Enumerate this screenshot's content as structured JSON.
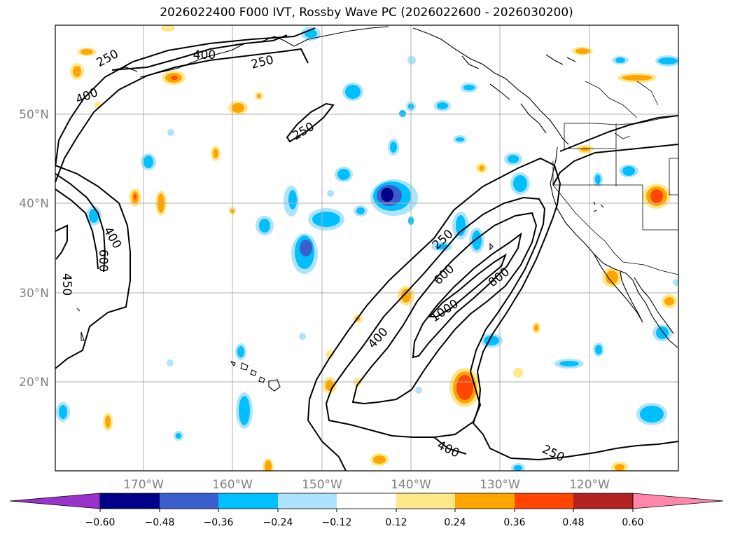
{
  "title": "2026022400 F000 IVT, Rossby Wave PC (2026022600 - 2026030200)",
  "map": {
    "lat_labels": [
      "50°N",
      "40°N",
      "30°N",
      "20°N"
    ],
    "lon_labels": [
      "170°W",
      "160°W",
      "150°W",
      "140°W",
      "130°W",
      "120°W"
    ],
    "contour_labels": [
      "250",
      "400",
      "250",
      "400",
      "250",
      "400",
      "600",
      "450",
      "250",
      "600",
      "800",
      "1000",
      "400",
      "400",
      "250"
    ]
  },
  "colorbar": {
    "tick_labels": [
      "−0.60",
      "−0.48",
      "−0.36",
      "−0.24",
      "−0.12",
      "0.12",
      "0.24",
      "0.36",
      "0.48",
      "0.60"
    ],
    "colors": [
      "#9933cc",
      "#00008b",
      "#3a5fcd",
      "#00bfff",
      "#aee4fb",
      "#ffffff",
      "#ffe88a",
      "#ffa500",
      "#ff4500",
      "#b22222",
      "#ff88aa"
    ]
  }
}
